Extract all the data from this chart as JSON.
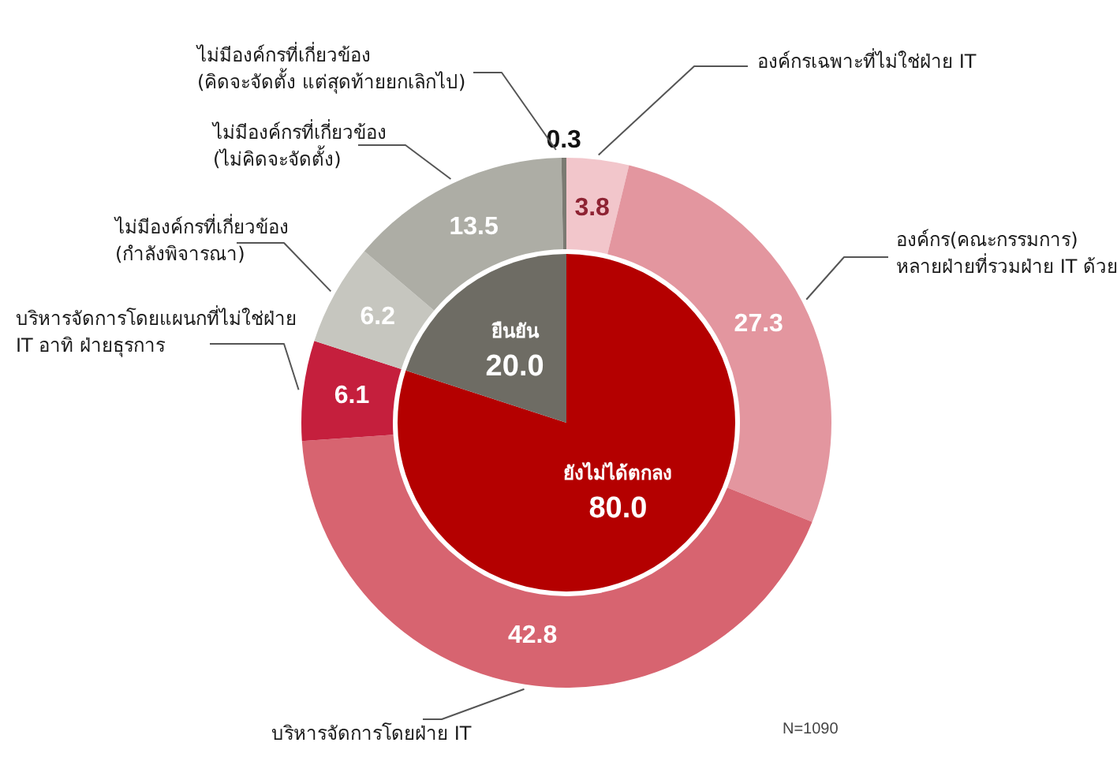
{
  "chart_data": [
    {
      "type": "pie",
      "categories": [
        "ยังไม่ได้ตกลง",
        "ยืนยัน"
      ],
      "values": [
        80.0,
        20.0
      ],
      "colors": [
        "#b40000",
        "#6e6c64"
      ],
      "value_labels": [
        "80.0",
        "20.0"
      ]
    },
    {
      "type": "donut",
      "categories": [
        "องค์กรเฉพาะที่ไม่ใช่ฝ่าย IT",
        "องค์กร(คณะกรรมการ)\nหลายฝ่ายที่รวมฝ่าย IT ด้วย",
        "บริหารจัดการโดยฝ่าย IT",
        "บริหารจัดการโดยแผนกที่ไม่ใช่ฝ่าย\nIT อาทิ ฝ่ายธุรการ",
        "ไม่มีองค์กรที่เกี่ยวข้อง\n(กำลังพิจารณา)",
        "ไม่มีองค์กรที่เกี่ยวข้อง\n(ไม่คิดจะจัดตั้ง)",
        "ไม่มีองค์กรที่เกี่ยวข้อง\n(คิดจะจัดตั้ง แต่สุดท้ายยกเลิกไป)"
      ],
      "values": [
        3.8,
        27.3,
        42.8,
        6.1,
        6.2,
        13.5,
        0.3
      ],
      "colors": [
        "#f2c6cb",
        "#e3969f",
        "#d76470",
        "#c51f3d",
        "#c6c6bf",
        "#adada5",
        "#7b7a72"
      ],
      "data_labels": true,
      "annotations": [
        "N=1090"
      ]
    }
  ]
}
